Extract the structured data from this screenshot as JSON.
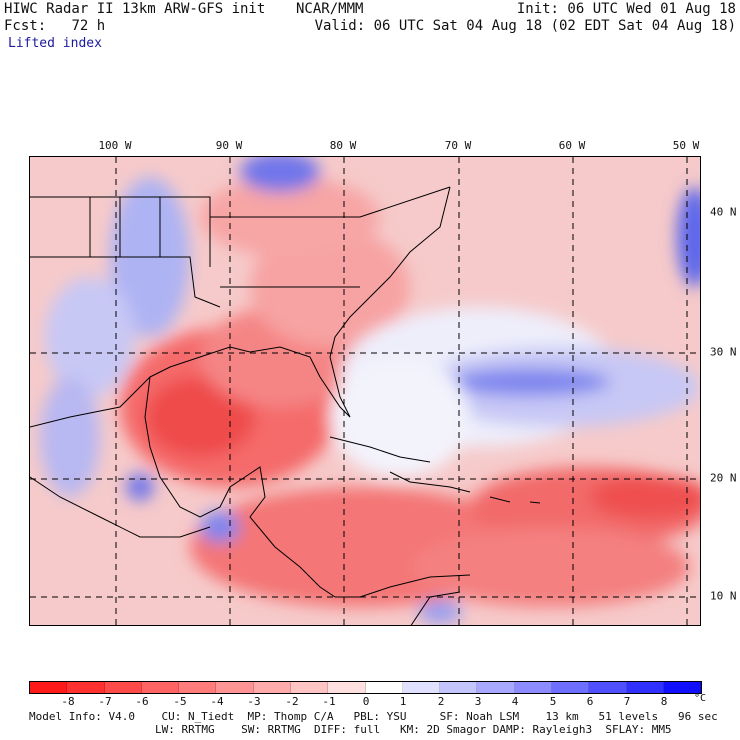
{
  "header": {
    "line1_left": "HIWC Radar II 13km ARW-GFS init",
    "line1_mid": "NCAR/MMM",
    "line1_right": "Init: 06 UTC Wed 01 Aug 18",
    "line2_left_label": "Fcst:",
    "line2_left_value": "72 h",
    "line2_right": "Valid: 06 UTC Sat 04 Aug 18 (02 EDT Sat 04 Aug 18)",
    "field": "Lifted index"
  },
  "map": {
    "lon_labels": [
      "100 W",
      "90 W",
      "80 W",
      "70 W",
      "60 W",
      "50 W"
    ],
    "lat_labels": [
      "40 N",
      "30 N",
      "20 N",
      "10 N"
    ]
  },
  "colorbar": {
    "ticks": [
      "-8",
      "-7",
      "-6",
      "-5",
      "-4",
      "-3",
      "-2",
      "-1",
      "0",
      "1",
      "2",
      "3",
      "4",
      "5",
      "6",
      "7",
      "8"
    ],
    "unit": "°C",
    "colors": [
      "#ff1a1a",
      "#ff3030",
      "#ff4a4a",
      "#ff6464",
      "#ff7c7c",
      "#ff9494",
      "#ffabab",
      "#ffc4c4",
      "#ffe0e0",
      "#ffffff",
      "#e0e0ff",
      "#c4c4ff",
      "#a8a8ff",
      "#8c8cff",
      "#6e6eff",
      "#5050ff",
      "#3030ff",
      "#1010ff"
    ]
  },
  "footer": {
    "line1": "Model Info: V4.0    CU: N_Tiedt  MP: Thomp C/A   PBL: YSU     SF: Noah LSM    13 km   51 levels   96 sec",
    "line2": "LW: RRTMG    SW: RRTMG  DIFF: full   KM: 2D Smagor DAMP: Rayleigh3  SFLAY: MM5"
  }
}
